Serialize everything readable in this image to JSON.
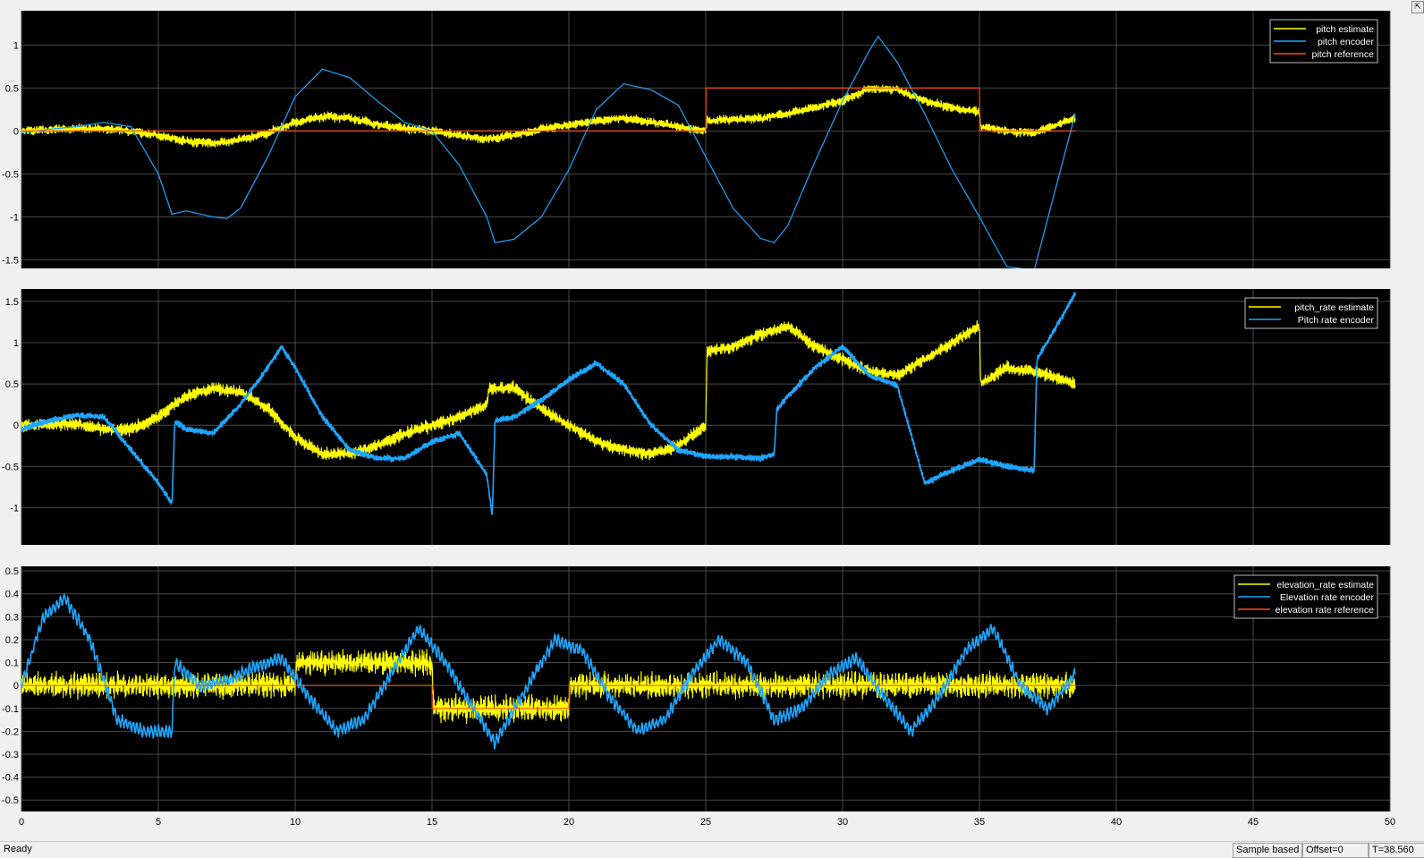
{
  "status": {
    "ready": "Ready",
    "sample_based": "Sample based",
    "offset": "Offset=0",
    "time": "T=38.560"
  },
  "colors": {
    "background": "#000000",
    "frame": "#f0f0f0",
    "grid": "#4a4a4a",
    "axis_text": "#ffffff",
    "yellow": "#ffff00",
    "blue": "#1ea6ff",
    "orange": "#ff4d14"
  },
  "chart_data": [
    {
      "type": "line",
      "title": "",
      "xlabel": "",
      "ylabel": "",
      "xlim": [
        0,
        50
      ],
      "ylim": [
        -1.6,
        1.4
      ],
      "xticks": [
        0,
        5,
        10,
        15,
        20,
        25,
        30,
        35,
        40,
        45,
        50
      ],
      "yticks": [
        -1.5,
        -1,
        -0.5,
        0,
        0.5,
        1
      ],
      "yticklabels": [
        "-1.5",
        "-1",
        "-0.5",
        "0",
        "0.5",
        "1"
      ],
      "show_xticklabels": false,
      "grid": true,
      "legend": "top-right",
      "series": [
        {
          "name": "pitch estimate",
          "color": "#ffff00",
          "noise": 0.05,
          "noise_freq": 22,
          "x": [
            0,
            2,
            3.5,
            5,
            6,
            7,
            8,
            9,
            10,
            11,
            12,
            13,
            14,
            15,
            16,
            17,
            18,
            19,
            20,
            21,
            22,
            23,
            24,
            25,
            25.05,
            27,
            28,
            30,
            31,
            32,
            33,
            34,
            35,
            35.05,
            36,
            37,
            38.5
          ],
          "y": [
            0,
            0.03,
            0.02,
            -0.05,
            -0.12,
            -0.14,
            -0.1,
            -0.02,
            0.1,
            0.17,
            0.15,
            0.08,
            0.03,
            0,
            -0.05,
            -0.1,
            -0.05,
            0.02,
            0.07,
            0.12,
            0.15,
            0.1,
            0.05,
            0,
            0.12,
            0.15,
            0.2,
            0.35,
            0.5,
            0.48,
            0.35,
            0.27,
            0.22,
            0.05,
            0.0,
            -0.02,
            0.15
          ]
        },
        {
          "name": "pitch encoder",
          "color": "#1ea6ff",
          "noise": 0,
          "x": [
            0,
            1,
            2,
            3,
            4,
            5,
            5.5,
            6,
            7,
            7.5,
            8,
            9,
            10,
            11,
            12,
            13,
            14,
            15,
            16,
            17,
            17.3,
            18,
            19,
            20,
            21,
            22,
            23,
            24,
            25,
            26,
            27,
            27.5,
            28,
            29,
            30,
            31,
            31.3,
            32,
            33,
            34,
            35,
            36,
            37,
            38.5
          ],
          "y": [
            -0.02,
            0.02,
            0.05,
            0.1,
            0.05,
            -0.5,
            -0.97,
            -0.93,
            -1.0,
            -1.02,
            -0.9,
            -0.3,
            0.4,
            0.72,
            0.62,
            0.35,
            0.1,
            0,
            -0.4,
            -1.0,
            -1.3,
            -1.26,
            -1.0,
            -0.45,
            0.25,
            0.55,
            0.48,
            0.3,
            -0.3,
            -0.9,
            -1.25,
            -1.3,
            -1.1,
            -0.35,
            0.35,
            0.95,
            1.1,
            0.8,
            0.2,
            -0.45,
            -1.0,
            -1.58,
            -1.62,
            0.2
          ]
        },
        {
          "name": "pitch reference",
          "color": "#ff4d14",
          "noise": 0,
          "x": [
            0,
            25,
            25.01,
            35,
            35.01,
            38.5
          ],
          "y": [
            0,
            0,
            0.5,
            0.5,
            0,
            0
          ]
        }
      ]
    },
    {
      "type": "line",
      "title": "",
      "xlabel": "",
      "ylabel": "",
      "xlim": [
        0,
        50
      ],
      "ylim": [
        -1.45,
        1.65
      ],
      "xticks": [
        0,
        5,
        10,
        15,
        20,
        25,
        30,
        35,
        40,
        45,
        50
      ],
      "yticks": [
        -1,
        -0.5,
        0,
        0.5,
        1,
        1.5
      ],
      "yticklabels": [
        "-1",
        "-0.5",
        "0",
        "0.5",
        "1",
        "1.5"
      ],
      "show_xticklabels": false,
      "grid": true,
      "legend": "top-right",
      "series": [
        {
          "name": "pitch_rate estimate",
          "color": "#ffff00",
          "noise": 0.07,
          "noise_freq": 20,
          "x": [
            0,
            2,
            3,
            4,
            5,
            6,
            7,
            8,
            9,
            10,
            11,
            12,
            13,
            14,
            15,
            16,
            17,
            17.1,
            18,
            19,
            20,
            21,
            22,
            23,
            24,
            25,
            25.05,
            26,
            27,
            28,
            29,
            30,
            31,
            32,
            33,
            34,
            35,
            35.05,
            36,
            37,
            38.5
          ],
          "y": [
            0,
            0.02,
            -0.05,
            -0.05,
            0.1,
            0.35,
            0.45,
            0.4,
            0.2,
            -0.15,
            -0.35,
            -0.35,
            -0.25,
            -0.1,
            0,
            0.1,
            0.25,
            0.45,
            0.45,
            0.2,
            0,
            -0.2,
            -0.3,
            -0.35,
            -0.25,
            0,
            0.9,
            0.95,
            1.1,
            1.2,
            0.95,
            0.8,
            0.65,
            0.6,
            0.8,
            1.0,
            1.2,
            0.5,
            0.7,
            0.65,
            0.5
          ]
        },
        {
          "name": "Pitch rate encoder",
          "color": "#1ea6ff",
          "noise": 0.035,
          "noise_freq": 45,
          "x": [
            0,
            1,
            2,
            3,
            4,
            5,
            5.5,
            5.6,
            6,
            7,
            8,
            9,
            9.5,
            10,
            11,
            12,
            13,
            14,
            15,
            16,
            17,
            17.2,
            17.3,
            18,
            19,
            20,
            21,
            22,
            23,
            24,
            25,
            26,
            27,
            27.5,
            27.6,
            28,
            29,
            30,
            31,
            32,
            33,
            34,
            35,
            36,
            37,
            37.1,
            38,
            38.5
          ],
          "y": [
            -0.05,
            0.05,
            0.12,
            0.1,
            -0.3,
            -0.7,
            -0.95,
            0.05,
            -0.05,
            -0.1,
            0.25,
            0.7,
            0.95,
            0.7,
            0.1,
            -0.3,
            -0.4,
            -0.4,
            -0.2,
            -0.1,
            -0.6,
            -1.1,
            0.05,
            0.1,
            0.3,
            0.55,
            0.75,
            0.5,
            0.0,
            -0.3,
            -0.38,
            -0.38,
            -0.4,
            -0.35,
            0.2,
            0.35,
            0.7,
            0.95,
            0.6,
            0.48,
            -0.7,
            -0.55,
            -0.42,
            -0.5,
            -0.55,
            0.8,
            1.3,
            1.6
          ]
        }
      ]
    },
    {
      "type": "line",
      "title": "",
      "xlabel": "",
      "ylabel": "",
      "xlim": [
        0,
        50
      ],
      "ylim": [
        -0.55,
        0.52
      ],
      "xticks": [
        0,
        5,
        10,
        15,
        20,
        25,
        30,
        35,
        40,
        45,
        50
      ],
      "yticks": [
        -0.5,
        -0.4,
        -0.3,
        -0.2,
        -0.1,
        0,
        0.1,
        0.2,
        0.3,
        0.4,
        0.5
      ],
      "yticklabels": [
        "-0.5",
        "-0.4",
        "-0.3",
        "-0.2",
        "-0.1",
        "0",
        "0.1",
        "0.2",
        "0.3",
        "0.4",
        "0.5"
      ],
      "show_xticklabels": true,
      "grid": true,
      "legend": "top-right",
      "series": [
        {
          "name": "elevation_rate estimate",
          "color": "#ffff00",
          "noise": 0.05,
          "noise_freq": 30,
          "x": [
            0,
            10,
            10.05,
            15,
            15.05,
            20,
            20.05,
            38.5
          ],
          "y": [
            0,
            0,
            0.1,
            0.1,
            -0.1,
            -0.1,
            0,
            0
          ]
        },
        {
          "name": "Elevation rate encoder",
          "color": "#1ea6ff",
          "noise": 0.025,
          "noise_freq": 60,
          "x": [
            0,
            0.8,
            1.6,
            2.5,
            3.5,
            4.5,
            5.5,
            5.6,
            6.5,
            7.5,
            8.5,
            9.5,
            10.5,
            11.5,
            12.5,
            13.5,
            14.5,
            15.5,
            16.5,
            17.3,
            18.5,
            19.5,
            20.5,
            21.5,
            22.5,
            23.5,
            24.5,
            25.5,
            26.5,
            27.5,
            28.5,
            29.5,
            30.5,
            31.5,
            32.5,
            33.5,
            34.5,
            35.5,
            36.5,
            37.5,
            38.5
          ],
          "y": [
            0,
            0.3,
            0.38,
            0.2,
            -0.15,
            -0.2,
            -0.2,
            0.1,
            0.0,
            0.02,
            0.08,
            0.12,
            -0.05,
            -0.2,
            -0.15,
            0.05,
            0.25,
            0.1,
            -0.1,
            -0.25,
            0.0,
            0.2,
            0.15,
            -0.05,
            -0.2,
            -0.15,
            0.05,
            0.2,
            0.1,
            -0.15,
            -0.1,
            0.05,
            0.12,
            -0.05,
            -0.2,
            -0.05,
            0.15,
            0.25,
            0.0,
            -0.1,
            0.05
          ]
        },
        {
          "name": "elevation rate reference",
          "color": "#ff4d14",
          "noise": 0,
          "x": [
            0,
            15,
            15.01,
            20,
            20.01,
            38.5
          ],
          "y": [
            0,
            0,
            -0.1,
            -0.1,
            0,
            0
          ]
        }
      ]
    }
  ]
}
